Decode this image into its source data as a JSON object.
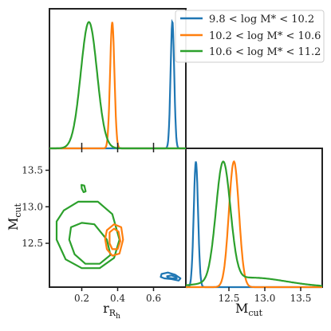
{
  "chart_data": {
    "type": "line",
    "layout": "corner plot",
    "legend_location": "top-right",
    "series": [
      {
        "name": "9.8 < log M* < 10.2",
        "color": "#1f77b4"
      },
      {
        "name": "10.2 < log M* < 10.6",
        "color": "#ff7f0e"
      },
      {
        "name": "10.6 < log M* < 11.2",
        "color": "#2ca02c"
      }
    ],
    "axes": {
      "r": {
        "label": "r_{R_h}",
        "ticks": [
          "0.2",
          "0.4",
          "0.6"
        ],
        "range": [
          0.02,
          0.78
        ]
      },
      "mcut": {
        "label": "M_cut",
        "ticks": [
          "12.5",
          "13.0",
          "13.5"
        ],
        "range": [
          11.9,
          13.8
        ]
      }
    },
    "panels": [
      {
        "id": "r-marginal",
        "type": "line",
        "x": "r",
        "peaks": [
          {
            "series": 0,
            "mean": 0.705,
            "sigma": 0.01
          },
          {
            "series": 1,
            "mean": 0.37,
            "sigma": 0.012
          },
          {
            "series": 2,
            "mean": 0.24,
            "sigma": 0.045
          }
        ]
      },
      {
        "id": "joint",
        "type": "scatter",
        "x": "r",
        "y": "mcut",
        "contours": [
          {
            "series": 2,
            "rings": [
              [
                [
                  0.1,
                  12.95
                ],
                [
                  0.18,
                  13.07
                ],
                [
                  0.29,
                  13.07
                ],
                [
                  0.37,
                  12.9
                ],
                [
                  0.41,
                  12.55
                ],
                [
                  0.38,
                  12.3
                ],
                [
                  0.3,
                  12.16
                ],
                [
                  0.2,
                  12.16
                ],
                [
                  0.11,
                  12.28
                ],
                [
                  0.06,
                  12.55
                ],
                [
                  0.06,
                  12.8
                ]
              ],
              [
                [
                  0.14,
                  12.72
                ],
                [
                  0.2,
                  12.78
                ],
                [
                  0.27,
                  12.76
                ],
                [
                  0.34,
                  12.55
                ],
                [
                  0.36,
                  12.34
                ],
                [
                  0.3,
                  12.22
                ],
                [
                  0.22,
                  12.22
                ],
                [
                  0.16,
                  12.35
                ],
                [
                  0.13,
                  12.55
                ]
              ],
              [
                [
                  0.198,
                  13.3
                ],
                [
                  0.214,
                  13.29
                ],
                [
                  0.222,
                  13.21
                ],
                [
                  0.21,
                  13.2
                ],
                [
                  0.2,
                  13.25
                ]
              ]
            ]
          },
          {
            "series": 1,
            "rings": [
              [
                [
                  0.34,
                  12.68
                ],
                [
                  0.38,
                  12.76
                ],
                [
                  0.42,
                  12.72
                ],
                [
                  0.43,
                  12.55
                ],
                [
                  0.41,
                  12.36
                ],
                [
                  0.37,
                  12.33
                ],
                [
                  0.34,
                  12.42
                ],
                [
                  0.33,
                  12.56
                ]
              ],
              [
                [
                  0.355,
                  12.65
                ],
                [
                  0.38,
                  12.7
                ],
                [
                  0.405,
                  12.66
                ],
                [
                  0.415,
                  12.53
                ],
                [
                  0.4,
                  12.42
                ],
                [
                  0.37,
                  12.42
                ],
                [
                  0.355,
                  12.5
                ]
              ]
            ]
          },
          {
            "series": 0,
            "rings": [
              [
                [
                  0.645,
                  12.08
                ],
                [
                  0.68,
                  12.1
                ],
                [
                  0.72,
                  12.07
                ],
                [
                  0.75,
                  12.02
                ],
                [
                  0.74,
                  11.99
                ],
                [
                  0.7,
                  12.01
                ],
                [
                  0.66,
                  12.02
                ],
                [
                  0.64,
                  12.04
                ]
              ],
              [
                [
                  0.675,
                  12.05
                ],
                [
                  0.7,
                  12.06
                ],
                [
                  0.725,
                  12.04
                ],
                [
                  0.73,
                  12.02
                ],
                [
                  0.7,
                  12.02
                ],
                [
                  0.68,
                  12.03
                ]
              ]
            ]
          }
        ]
      },
      {
        "id": "mcut-marginal",
        "type": "line",
        "x": "mcut",
        "peaks": [
          {
            "series": 0,
            "mean": 12.04,
            "sigma": 0.03
          },
          {
            "series": 1,
            "mean": 12.57,
            "sigma": 0.07
          },
          {
            "series": 2,
            "mean": 12.42,
            "sigma": 0.1,
            "tail_mean": 12.8,
            "tail_sigma": 0.5,
            "tail_weight": 0.08
          }
        ]
      }
    ]
  }
}
